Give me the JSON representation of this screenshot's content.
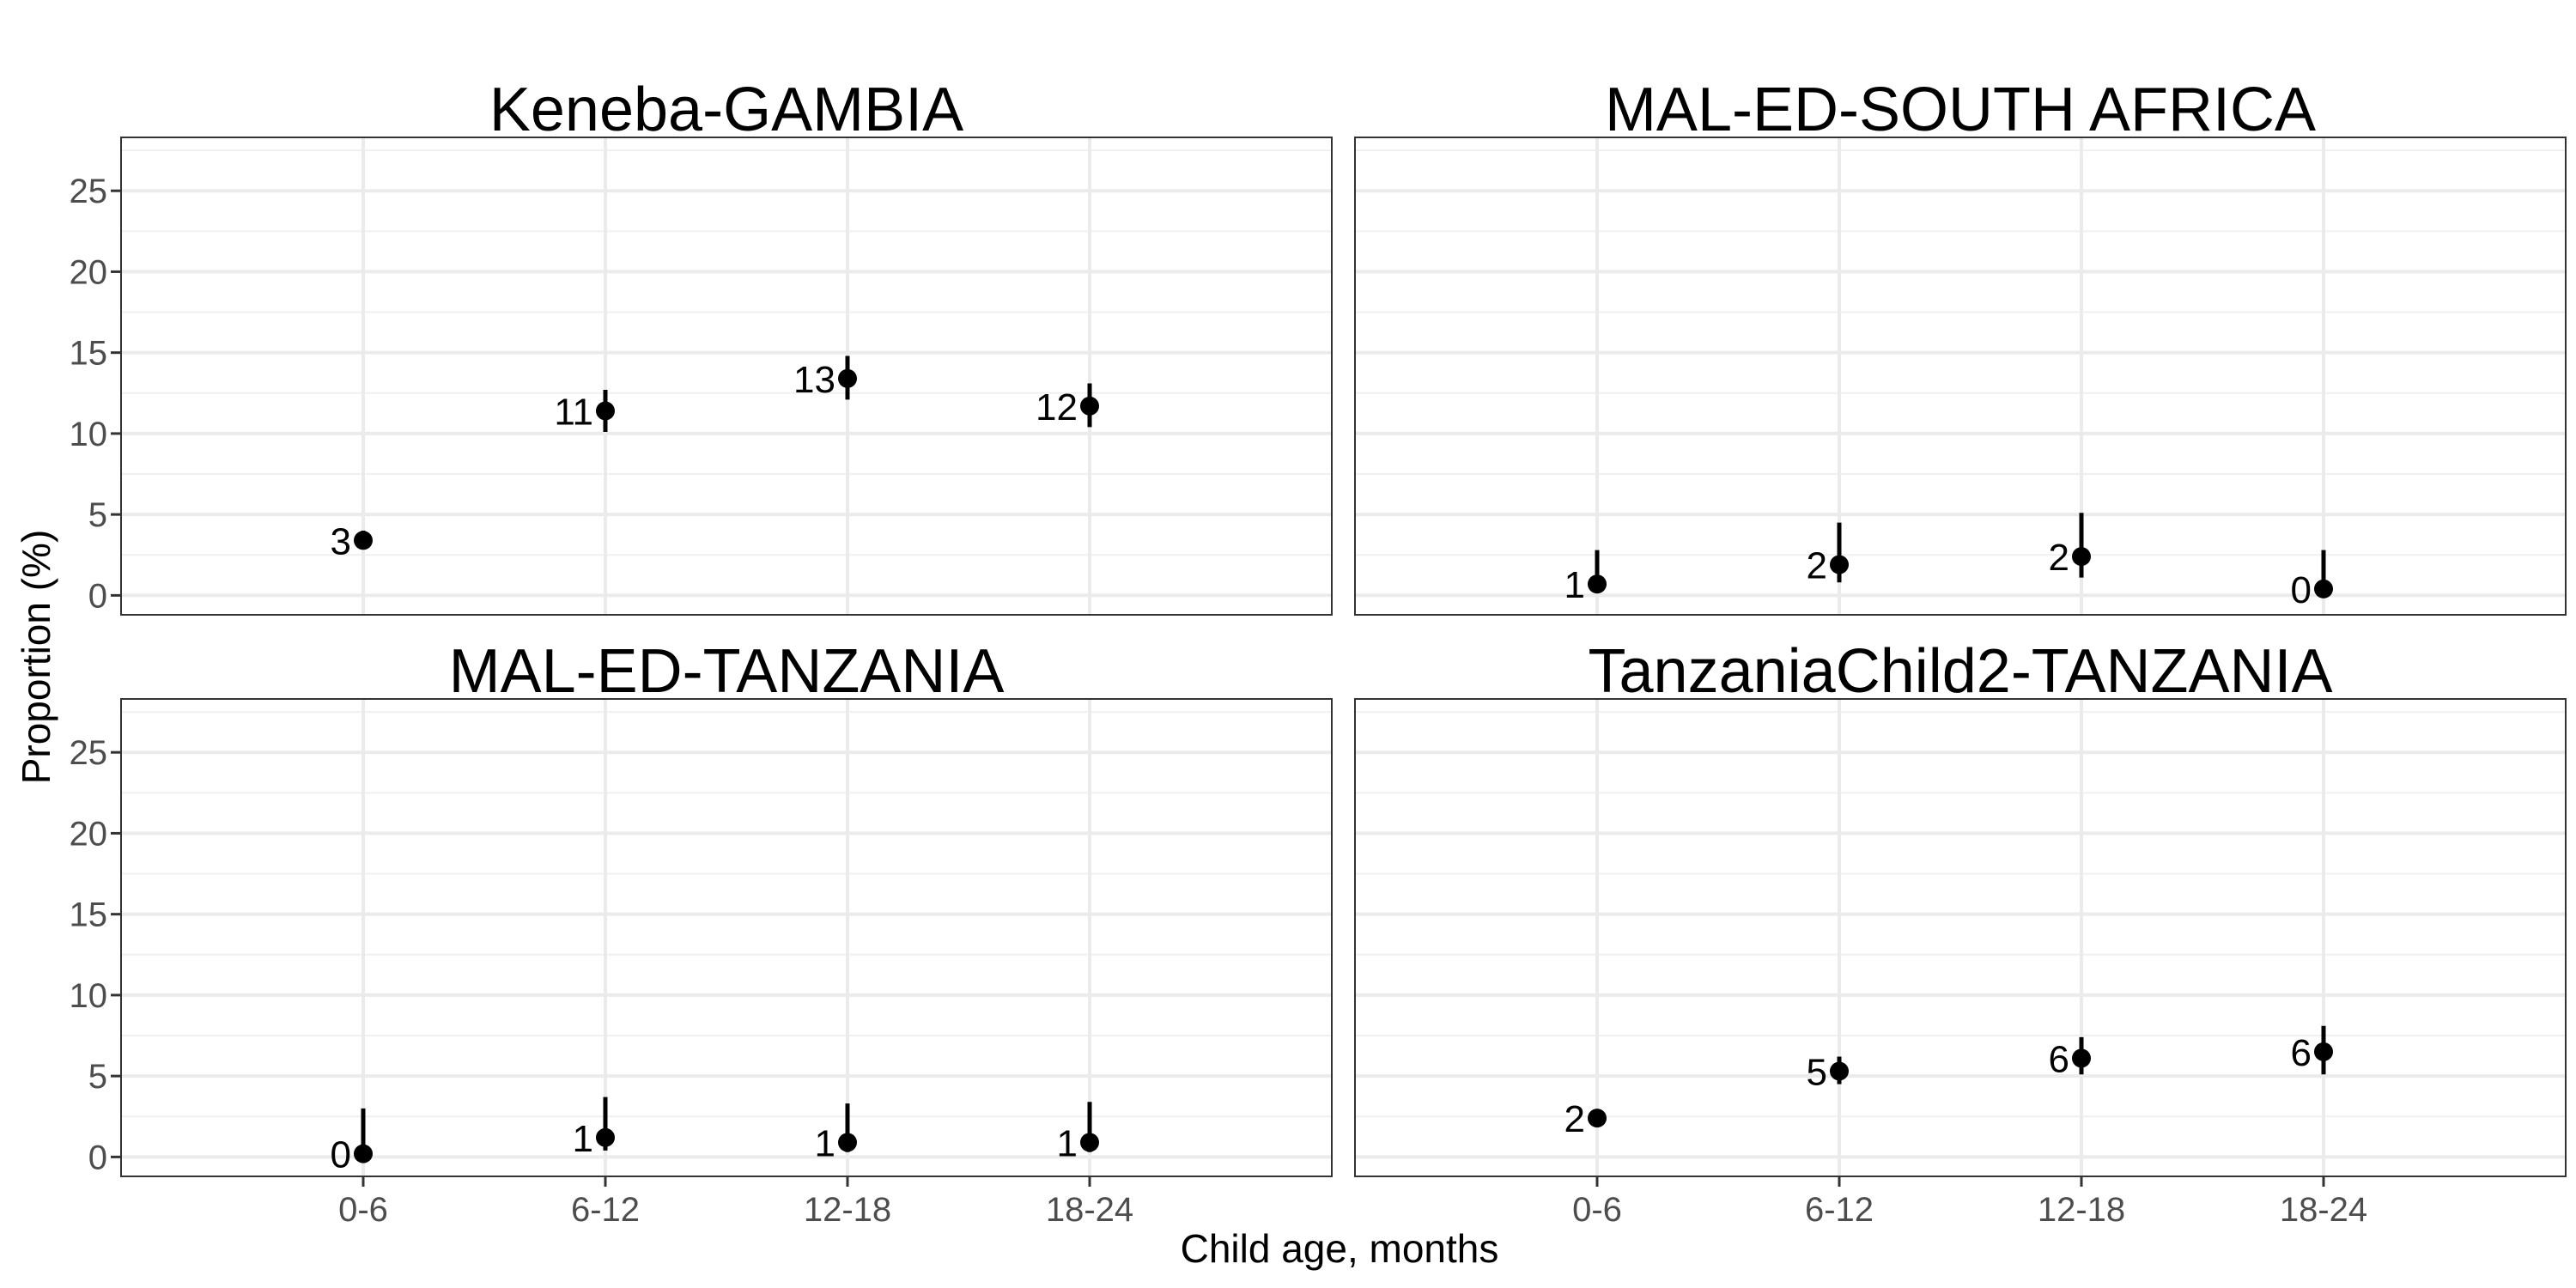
{
  "chart_data": {
    "type": "scatter",
    "xlabel": "Child age, months",
    "ylabel": "Proportion (%)",
    "categories": [
      "0-6",
      "6-12",
      "12-18",
      "18-24"
    ],
    "ylim": [
      -1.2,
      28.3
    ],
    "yticks": [
      0,
      5,
      10,
      15,
      20,
      25
    ],
    "grid": true,
    "panels": [
      {
        "title": "Keneba-GAMBIA",
        "points": [
          {
            "x": "0-6",
            "y": 3.4,
            "lower": 2.9,
            "upper": 4.0,
            "label": "3"
          },
          {
            "x": "6-12",
            "y": 11.4,
            "lower": 10.1,
            "upper": 12.7,
            "label": "11"
          },
          {
            "x": "12-18",
            "y": 13.4,
            "lower": 12.1,
            "upper": 14.8,
            "label": "13"
          },
          {
            "x": "18-24",
            "y": 11.7,
            "lower": 10.4,
            "upper": 13.1,
            "label": "12"
          }
        ]
      },
      {
        "title": "MAL-ED-SOUTH AFRICA",
        "points": [
          {
            "x": "0-6",
            "y": 0.7,
            "lower": 0.2,
            "upper": 2.8,
            "label": "1"
          },
          {
            "x": "6-12",
            "y": 1.9,
            "lower": 0.8,
            "upper": 4.5,
            "label": "2"
          },
          {
            "x": "12-18",
            "y": 2.4,
            "lower": 1.1,
            "upper": 5.1,
            "label": "2"
          },
          {
            "x": "18-24",
            "y": 0.4,
            "lower": 0.0,
            "upper": 2.8,
            "label": "0"
          }
        ]
      },
      {
        "title": "MAL-ED-TANZANIA",
        "points": [
          {
            "x": "0-6",
            "y": 0.2,
            "lower": 0.0,
            "upper": 3.0,
            "label": "0"
          },
          {
            "x": "6-12",
            "y": 1.2,
            "lower": 0.4,
            "upper": 3.7,
            "label": "1"
          },
          {
            "x": "12-18",
            "y": 0.9,
            "lower": 0.3,
            "upper": 3.3,
            "label": "1"
          },
          {
            "x": "18-24",
            "y": 0.9,
            "lower": 0.3,
            "upper": 3.4,
            "label": "1"
          }
        ]
      },
      {
        "title": "TanzaniaChild2-TANZANIA",
        "points": [
          {
            "x": "0-6",
            "y": 2.4,
            "lower": 2.0,
            "upper": 2.9,
            "label": "2"
          },
          {
            "x": "6-12",
            "y": 5.3,
            "lower": 4.5,
            "upper": 6.2,
            "label": "5"
          },
          {
            "x": "12-18",
            "y": 6.1,
            "lower": 5.1,
            "upper": 7.4,
            "label": "6"
          },
          {
            "x": "18-24",
            "y": 6.5,
            "lower": 5.1,
            "upper": 8.1,
            "label": "6"
          }
        ]
      }
    ]
  }
}
